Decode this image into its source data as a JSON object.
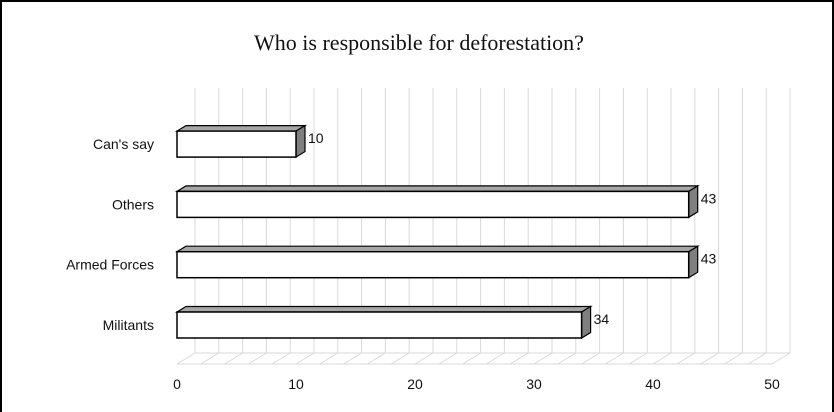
{
  "chart_data": {
    "type": "bar",
    "orientation": "horizontal",
    "style": "3d",
    "title": "Who is responsible for deforestation?",
    "xlabel": "",
    "ylabel": "",
    "categories": [
      "Militants",
      "Armed Forces",
      "Others",
      "Can's say"
    ],
    "values": [
      34,
      43,
      43,
      10
    ],
    "xlim": [
      0,
      50
    ],
    "xticks": [
      "0",
      "10",
      "20",
      "30",
      "40",
      "50"
    ],
    "grid": true,
    "legend": "none",
    "colors": {
      "bar_front": "#ffffff",
      "bar_side": "#7f7f7f",
      "bar_top": "#a6a6a6",
      "outline": "#000000",
      "grid": "#d9d9d9"
    }
  }
}
